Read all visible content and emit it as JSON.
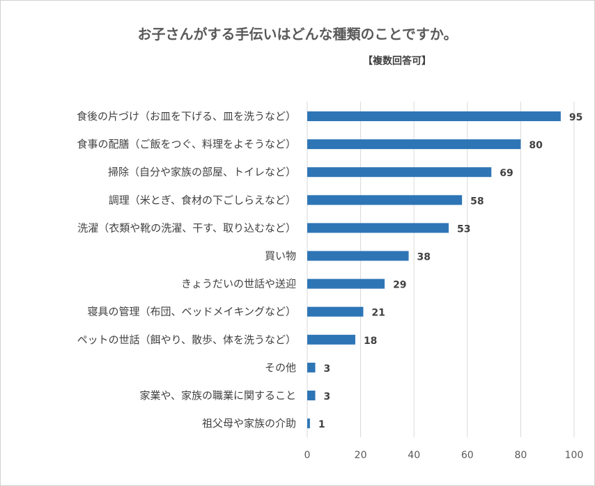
{
  "chart_data": {
    "type": "bar",
    "orientation": "horizontal",
    "title": "お子さんがする手伝いはどんな種類のことですか。",
    "subtitle": "【複数回答可】",
    "categories": [
      "食後の片づけ（お皿を下げる、皿を洗うなど）",
      "食事の配膳（ご飯をつぐ、料理をよそうなど）",
      "掃除（自分や家族の部屋、トイレなど）",
      "調理（米とぎ、食材の下ごしらえなど）",
      "洗濯（衣類や靴の洗濯、干す、取り込むなど）",
      "買い物",
      "きょうだいの世話や送迎",
      "寝具の管理（布団、ベッドメイキングなど）",
      "ペットの世話（餌やり、散歩、体を洗うなど）",
      "その他",
      "家業や、家族の職業に関すること",
      "祖父母や家族の介助"
    ],
    "values": [
      95,
      80,
      69,
      58,
      53,
      38,
      29,
      21,
      18,
      3,
      3,
      1
    ],
    "xlim": [
      0,
      100
    ],
    "xticks": [
      0,
      20,
      40,
      60,
      80,
      100
    ],
    "grid": true,
    "bar_color": "#2e75b6",
    "xlabel": "",
    "ylabel": ""
  }
}
